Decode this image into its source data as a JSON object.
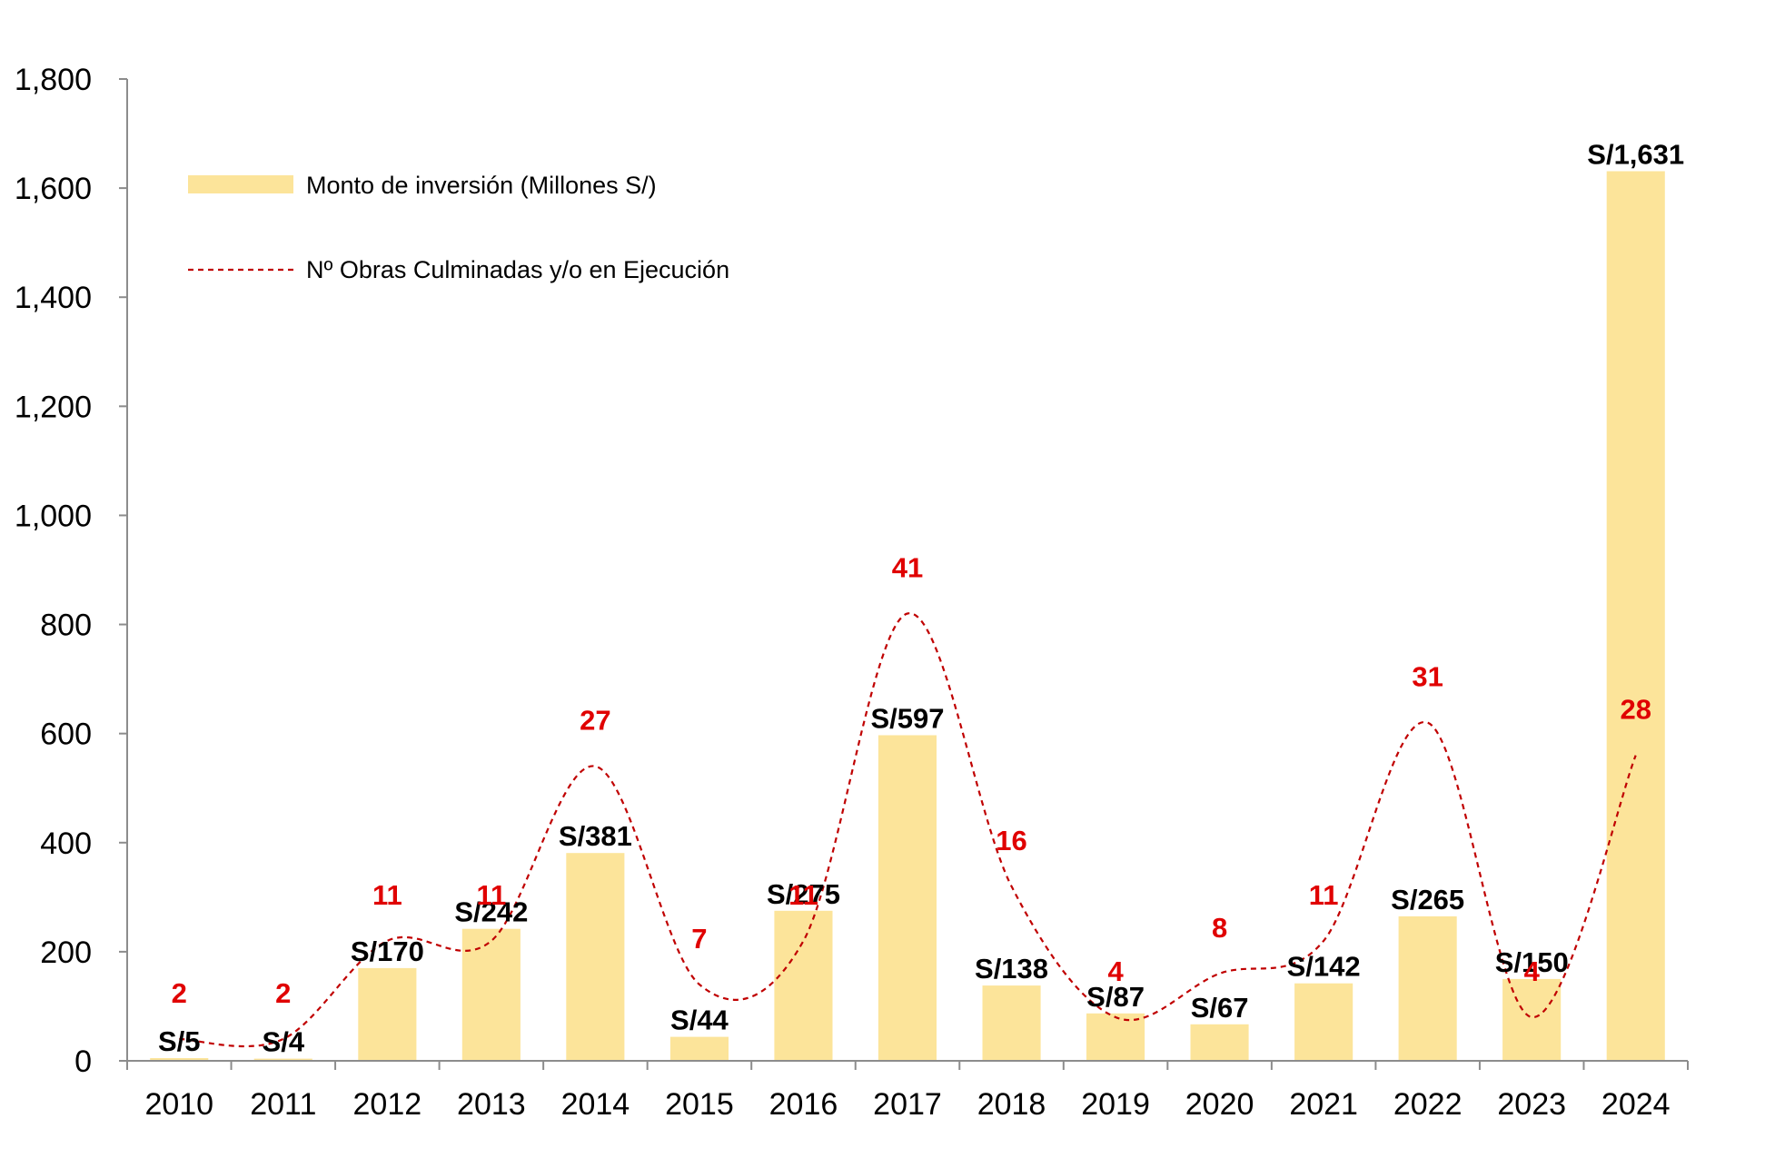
{
  "chart_data": {
    "type": "bar",
    "title": "",
    "xlabel": "",
    "ylabel": "",
    "categories": [
      "2010",
      "2011",
      "2012",
      "2013",
      "2014",
      "2015",
      "2016",
      "2017",
      "2018",
      "2019",
      "2020",
      "2021",
      "2022",
      "2023",
      "2024"
    ],
    "ylim": [
      0,
      1800
    ],
    "yticks": [
      0,
      200,
      400,
      600,
      800,
      1000,
      1200,
      1400,
      1600,
      1800
    ],
    "ytick_labels": [
      "0",
      "200",
      "400",
      "600",
      "800",
      "1,000",
      "1,200",
      "1,400",
      "1,600",
      "1,800"
    ],
    "grid": false,
    "legend_position": "top-left",
    "series": [
      {
        "name": "Monto de inversión (Millones S/)",
        "type": "bar",
        "color": "#FCE49A",
        "values": [
          5,
          4,
          170,
          242,
          381,
          44,
          275,
          597,
          138,
          87,
          67,
          142,
          265,
          150,
          1631
        ],
        "labels": [
          "S/5",
          "S/4",
          "S/170",
          "S/242",
          "S/381",
          "S/44",
          "S/275",
          "S/597",
          "S/138",
          "S/87",
          "S/67",
          "S/142",
          "S/265",
          "S/150",
          "S/1,631"
        ]
      },
      {
        "name": "Nº Obras Culminadas y/o en Ejecución",
        "type": "line",
        "style": "dashed",
        "color": "#C00000",
        "label_color": "#E00000",
        "values": [
          2,
          2,
          11,
          11,
          27,
          7,
          11,
          41,
          16,
          4,
          8,
          11,
          31,
          4,
          28
        ],
        "labels": [
          "2",
          "2",
          "11",
          "11",
          "27",
          "7",
          "11",
          "41",
          "16",
          "4",
          "8",
          "11",
          "31",
          "4",
          "28"
        ]
      }
    ]
  }
}
